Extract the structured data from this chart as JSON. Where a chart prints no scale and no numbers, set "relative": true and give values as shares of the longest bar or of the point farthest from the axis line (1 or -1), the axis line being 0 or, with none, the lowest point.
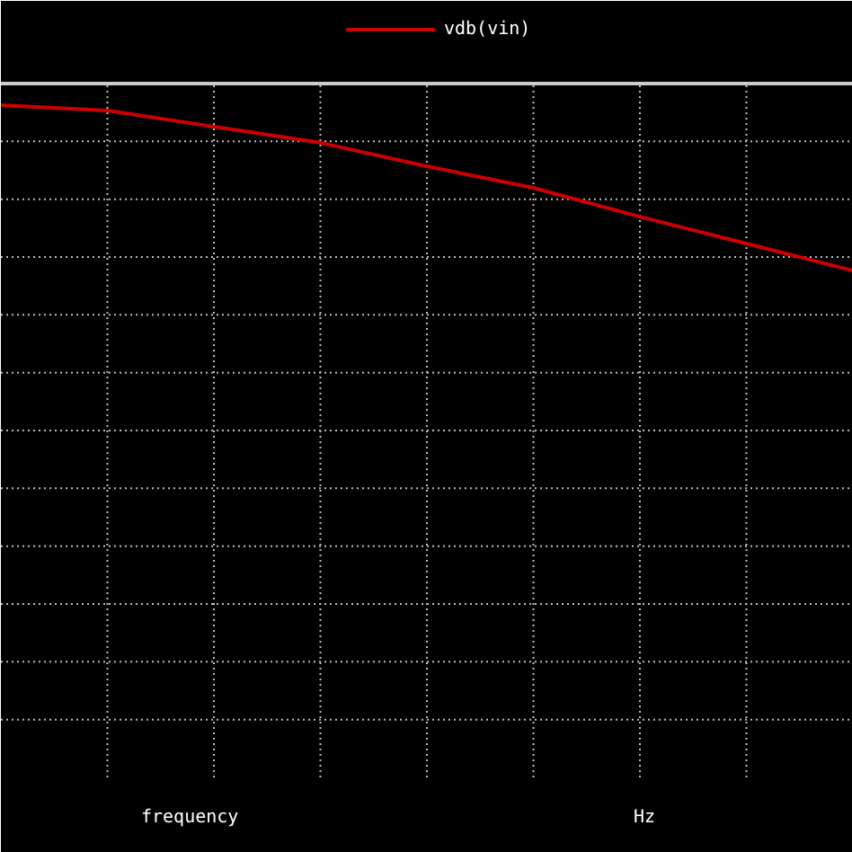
{
  "chart_data": {
    "type": "line",
    "relative": true,
    "xlabel": "frequency",
    "annotations": [
      "Hz"
    ],
    "categories": [
      null,
      null,
      null,
      null,
      null,
      null,
      null,
      null,
      null
    ],
    "series": [
      {
        "name": "vdb(vin)",
        "color": "#cc0000",
        "values": [
          1,
          0.992,
          0.968,
          0.944,
          0.909,
          0.877,
          0.834,
          0.794,
          0.754
        ]
      }
    ],
    "grid": true,
    "legend": "top",
    "marker": "none",
    "line_style": "solid"
  }
}
